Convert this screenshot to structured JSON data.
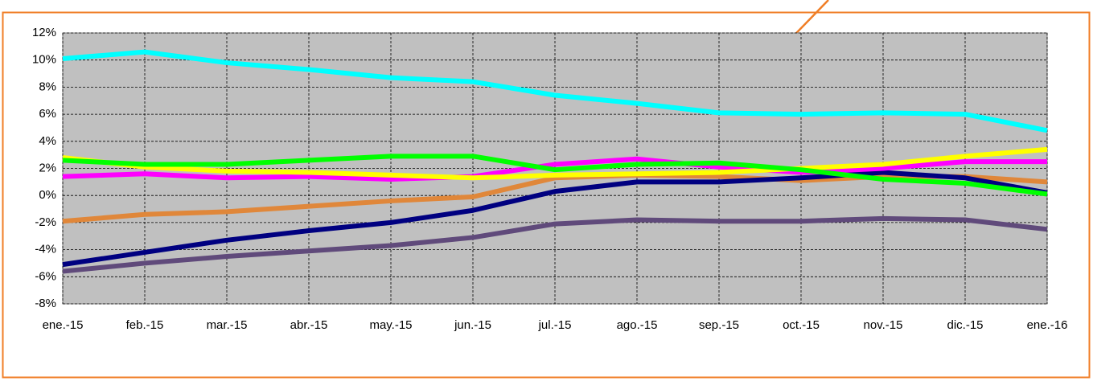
{
  "chart_data": {
    "type": "line",
    "categories": [
      "ene.-15",
      "feb.-15",
      "mar.-15",
      "abr.-15",
      "may.-15",
      "jun.-15",
      "jul.-15",
      "ago.-15",
      "sep.-15",
      "oct.-15",
      "nov.-15",
      "dic.-15",
      "ene.-16"
    ],
    "series": [
      {
        "color": "#e0873a",
        "values": [
          -1.9,
          -1.4,
          -1.2,
          -0.8,
          -0.4,
          -0.1,
          1.3,
          1.5,
          1.4,
          1.1,
          1.4,
          1.4,
          1.0
        ]
      },
      {
        "color": "#604a7b",
        "values": [
          -5.6,
          -5.0,
          -4.5,
          -4.1,
          -3.7,
          -3.1,
          -2.1,
          -1.8,
          -1.9,
          -1.9,
          -1.7,
          -1.8,
          -2.5
        ]
      },
      {
        "color": "#000080",
        "values": [
          -5.1,
          -4.2,
          -3.3,
          -2.6,
          -2.0,
          -1.1,
          0.3,
          1.0,
          1.0,
          1.3,
          1.7,
          1.3,
          0.2
        ]
      },
      {
        "color": "#ff00ff",
        "values": [
          1.4,
          1.6,
          1.3,
          1.4,
          1.2,
          1.4,
          2.3,
          2.7,
          2.1,
          1.7,
          2.0,
          2.5,
          2.5
        ]
      },
      {
        "color": "#ffff00",
        "values": [
          2.8,
          2.1,
          1.8,
          1.7,
          1.5,
          1.3,
          1.5,
          1.6,
          1.7,
          2.0,
          2.3,
          2.9,
          3.4
        ]
      },
      {
        "color": "#00ff00",
        "values": [
          2.6,
          2.3,
          2.3,
          2.6,
          2.9,
          2.9,
          1.9,
          2.3,
          2.4,
          1.9,
          1.2,
          0.9,
          0.1
        ]
      },
      {
        "color": "#00ffff",
        "values": [
          10.1,
          10.6,
          9.8,
          9.3,
          8.7,
          8.4,
          7.4,
          6.8,
          6.1,
          6.0,
          6.1,
          6.0,
          4.8
        ]
      }
    ],
    "ylim": [
      -8,
      12
    ],
    "yticks": [
      {
        "value": -8,
        "label": "-8%"
      },
      {
        "value": -6,
        "label": "-6%"
      },
      {
        "value": -4,
        "label": "-4%"
      },
      {
        "value": -2,
        "label": "-2%"
      },
      {
        "value": 0,
        "label": "0%"
      },
      {
        "value": 2,
        "label": "2%"
      },
      {
        "value": 4,
        "label": "4%"
      },
      {
        "value": 6,
        "label": "6%"
      },
      {
        "value": 8,
        "label": "8%"
      },
      {
        "value": 10,
        "label": "10%"
      },
      {
        "value": 12,
        "label": "12%"
      }
    ],
    "grid": true
  }
}
